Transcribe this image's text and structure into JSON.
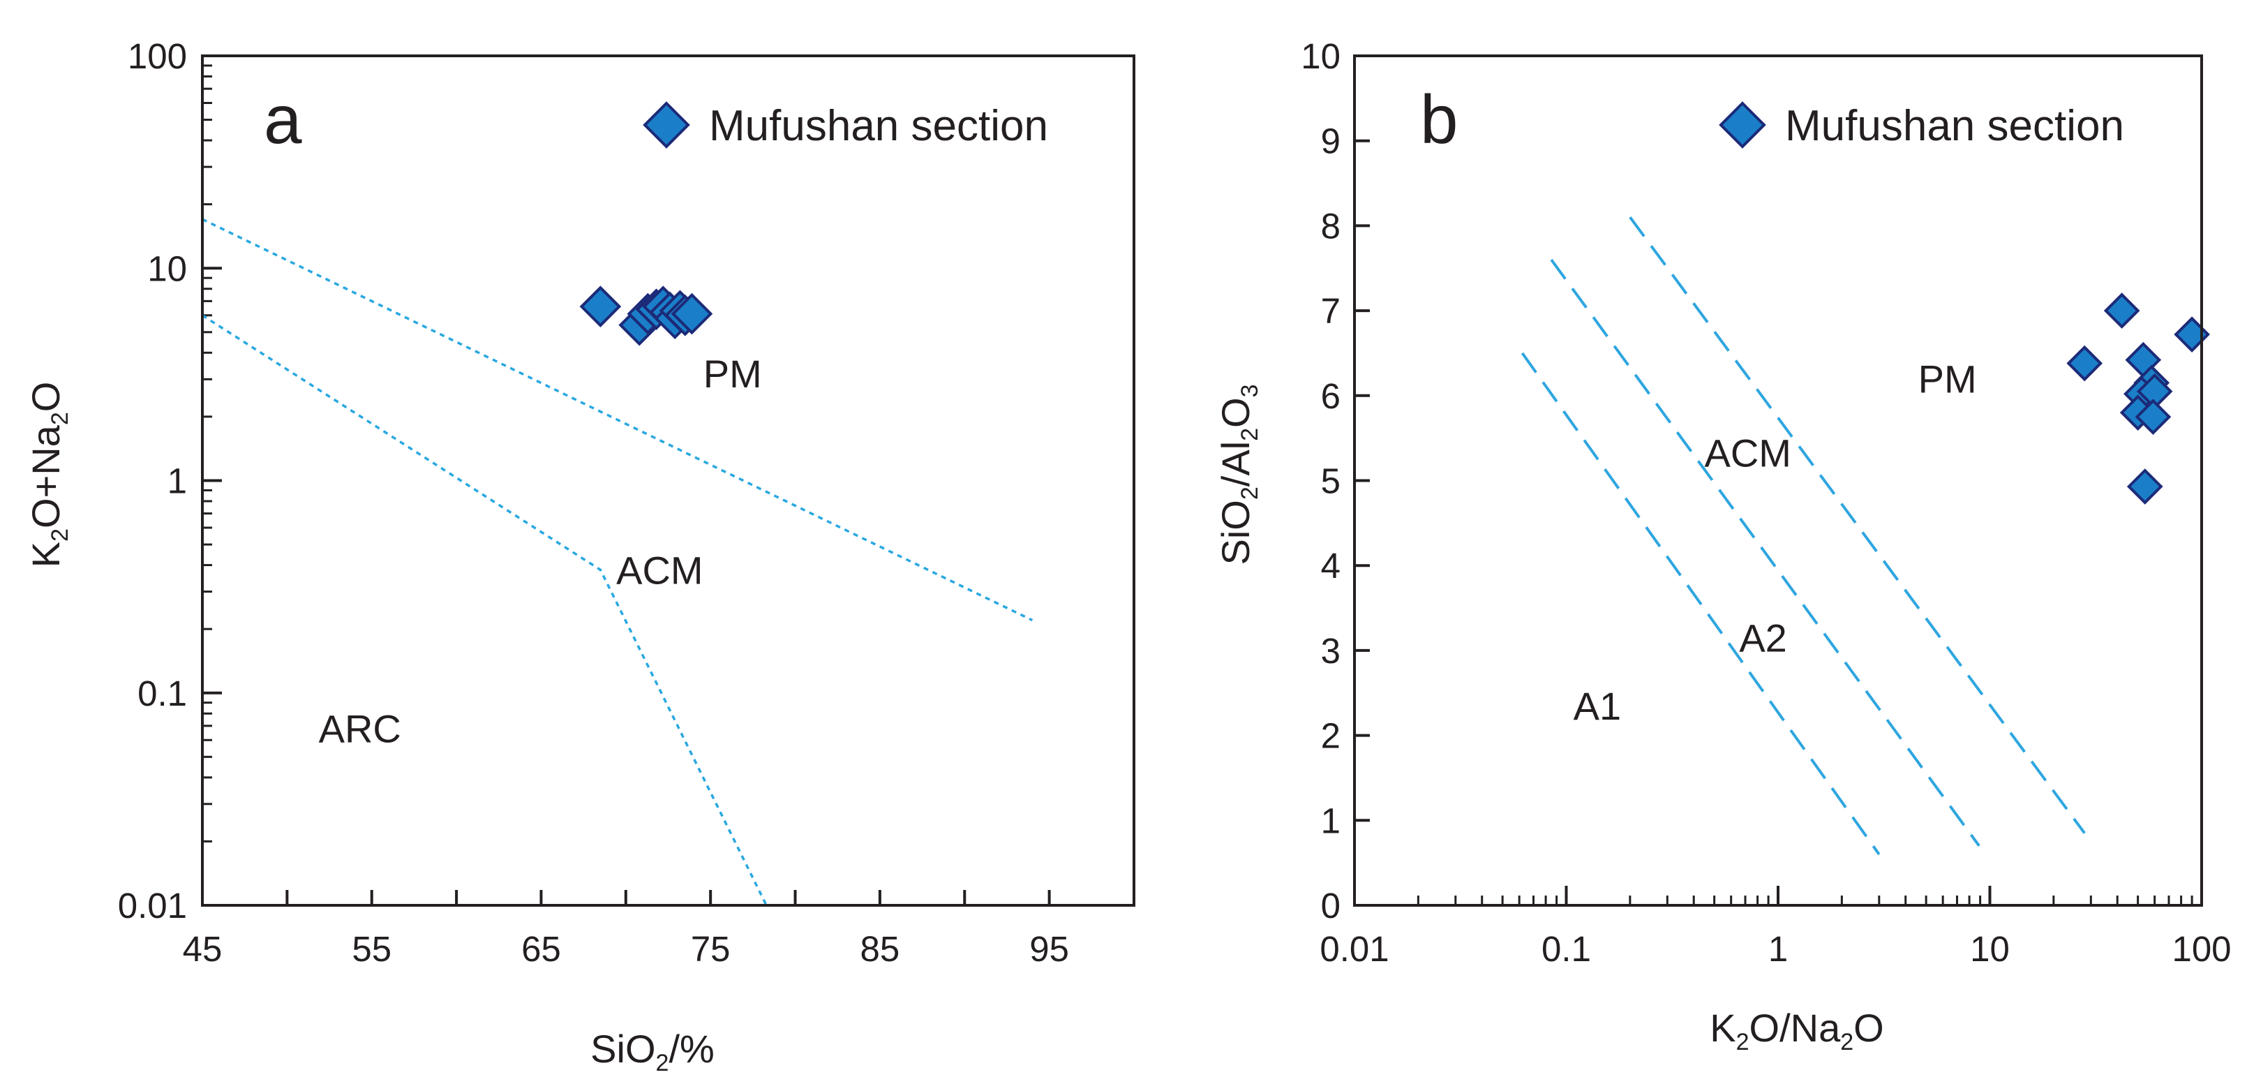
{
  "colors": {
    "marker_fill": "#1a7fc8",
    "marker_stroke": "#1c2a78",
    "boundary_a": "#29a8e0",
    "boundary_b": "#2ea6e0",
    "axis": "#231f20"
  },
  "legend_text": "Mufushan section",
  "legend_marker_icon": "diamond-marker-icon",
  "chart_data": [
    {
      "type": "scatter",
      "panel_letter": "a",
      "xlabel": {
        "base": "SiO",
        "sub": "2",
        "suffix": "/%"
      },
      "ylabel": [
        {
          "t": "K"
        },
        {
          "t": "2",
          "sub": true
        },
        {
          "t": "O+Na"
        },
        {
          "t": "2",
          "sub": true
        },
        {
          "t": "O"
        }
      ],
      "xlim": [
        45,
        100
      ],
      "ylim": [
        0.01,
        100
      ],
      "yscale": "log",
      "xticks": [
        45,
        50,
        55,
        60,
        65,
        70,
        75,
        80,
        85,
        90,
        95
      ],
      "xtick_labels": [
        "45",
        "55",
        "65",
        "75",
        "85",
        "95"
      ],
      "xtick_label_values": [
        45,
        55,
        65,
        75,
        85,
        95
      ],
      "ytick_labels": [
        "100",
        "10",
        "1",
        "0.1",
        "0.01"
      ],
      "ytick_values": [
        100,
        10,
        1,
        0.1,
        0.01
      ],
      "regions": [
        {
          "text": "PM",
          "x": 76.3,
          "y": 3.2
        },
        {
          "text": "ACM",
          "x": 72,
          "y": 0.38
        },
        {
          "text": "ARC",
          "x": 54.3,
          "y": 0.068
        }
      ],
      "boundaries": [
        {
          "points": [
            [
              45,
              17
            ],
            [
              94,
              0.22
            ]
          ]
        },
        {
          "points": [
            [
              45,
              6
            ],
            [
              68.5,
              0.38
            ],
            [
              78.3,
              0.01
            ]
          ]
        }
      ],
      "series": [
        {
          "name": "Mufushan section",
          "points": [
            [
              68.5,
              6.6
            ],
            [
              70.8,
              5.4
            ],
            [
              71.3,
              6.1
            ],
            [
              71.8,
              6.4
            ],
            [
              72.2,
              6.6
            ],
            [
              72.6,
              6.2
            ],
            [
              72.9,
              5.8
            ],
            [
              73.2,
              6.3
            ],
            [
              73.5,
              6.0
            ],
            [
              73.9,
              6.1
            ]
          ]
        }
      ]
    },
    {
      "type": "scatter",
      "panel_letter": "b",
      "xlabel": [
        {
          "t": "K"
        },
        {
          "t": "2",
          "sub": true
        },
        {
          "t": "O/Na"
        },
        {
          "t": "2",
          "sub": true
        },
        {
          "t": "O"
        }
      ],
      "ylabel": [
        {
          "t": "SiO"
        },
        {
          "t": "2",
          "sub": true
        },
        {
          "t": "/Al"
        },
        {
          "t": "2",
          "sub": true
        },
        {
          "t": "O"
        },
        {
          "t": "3",
          "sub": true
        }
      ],
      "xlim": [
        0.01,
        100
      ],
      "xscale": "log",
      "ylim": [
        0,
        10
      ],
      "xtick_labels": [
        "0.01",
        "0.1",
        "1",
        "10",
        "100"
      ],
      "xtick_values": [
        0.01,
        0.1,
        1,
        10,
        100
      ],
      "ytick_labels": [
        "0",
        "1",
        "2",
        "3",
        "4",
        "5",
        "6",
        "7",
        "8",
        "9",
        "10"
      ],
      "regions": [
        {
          "text": "PM",
          "x": 6.3,
          "y": 6.2
        },
        {
          "text": "ACM",
          "x": 0.72,
          "y": 5.33
        },
        {
          "text": "A2",
          "x": 0.85,
          "y": 3.15
        },
        {
          "text": "A1",
          "x": 0.14,
          "y": 2.35
        }
      ],
      "boundaries": [
        {
          "points": [
            [
              0.062,
              6.5
            ],
            [
              3.0,
              0.6
            ]
          ]
        },
        {
          "points": [
            [
              0.085,
              7.6
            ],
            [
              8.9,
              0.7
            ]
          ]
        },
        {
          "points": [
            [
              0.2,
              8.1
            ],
            [
              28,
              0.85
            ]
          ]
        }
      ],
      "series": [
        {
          "name": "Mufushan section",
          "points": [
            [
              28,
              6.38
            ],
            [
              42,
              7.0
            ],
            [
              90,
              6.72
            ],
            [
              53,
              6.42
            ],
            [
              58,
              6.15
            ],
            [
              52,
              6.02
            ],
            [
              60,
              6.05
            ],
            [
              50,
              5.8
            ],
            [
              59,
              5.75
            ],
            [
              54,
              4.93
            ]
          ]
        }
      ]
    }
  ]
}
